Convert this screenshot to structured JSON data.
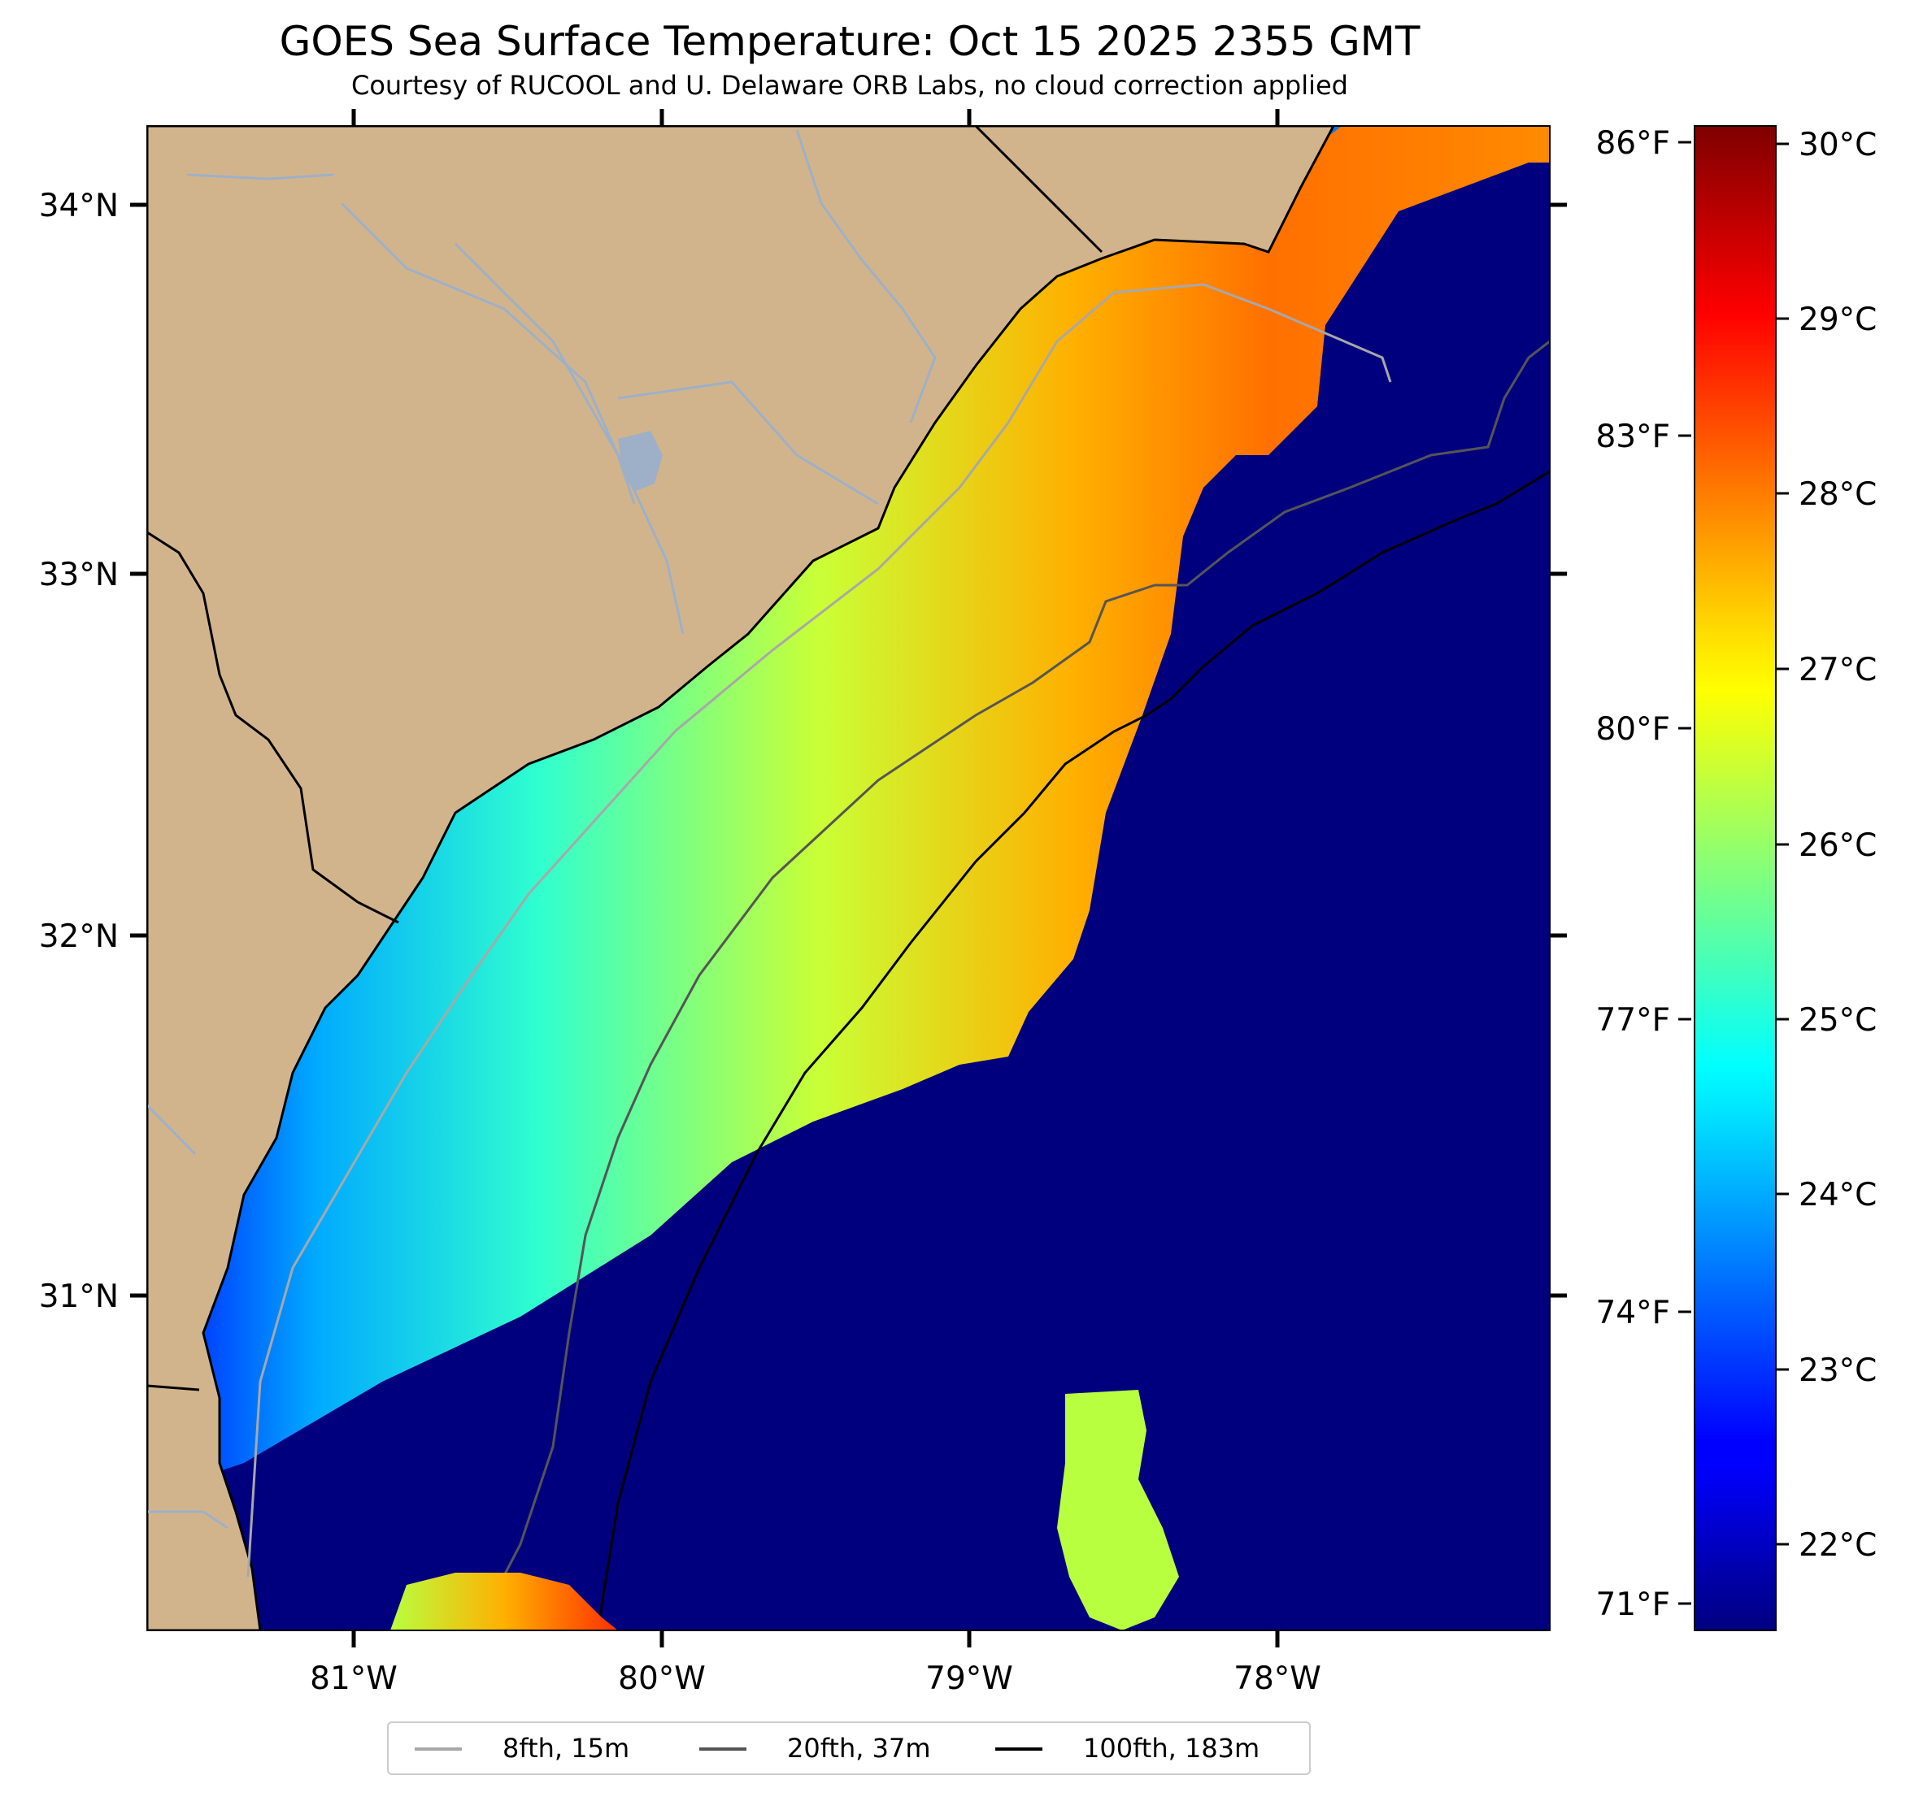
{
  "title": "GOES Sea Surface Temperature: Oct 15 2025 2355 GMT",
  "subtitle": "Courtesy of RUCOOL and U. Delaware ORB Labs, no cloud correction applied",
  "map": {
    "region": "South Carolina / Georgia coast",
    "lat_labels": [
      "34°N",
      "33°N",
      "32°N",
      "31°N"
    ],
    "lon_labels": [
      "81°W",
      "80°W",
      "79°W",
      "78°W"
    ],
    "lat_range": [
      30.1,
      34.22
    ],
    "lon_range": [
      -81.67,
      -77.12
    ],
    "colors": {
      "land": "#d2b48c",
      "ocean_min": "#00007f",
      "coastline": "#000000",
      "rivers": "#9db0c8",
      "no_data": "#ffffff"
    }
  },
  "fahrenheit_scale": {
    "labels": [
      "86°F",
      "83°F",
      "80°F",
      "77°F",
      "74°F",
      "71°F"
    ]
  },
  "colorbar": {
    "colormap": "jet",
    "range_c": [
      21.5,
      30.1
    ],
    "labels": [
      "30°C",
      "29°C",
      "28°C",
      "27°C",
      "26°C",
      "25°C",
      "24°C",
      "23°C",
      "22°C"
    ]
  },
  "legend": {
    "items": [
      {
        "label": "8fth, 15m",
        "color": "#a8a8a8"
      },
      {
        "label": "20fth, 37m",
        "color": "#555555"
      },
      {
        "label": "100fth, 183m",
        "color": "#000000"
      }
    ]
  }
}
